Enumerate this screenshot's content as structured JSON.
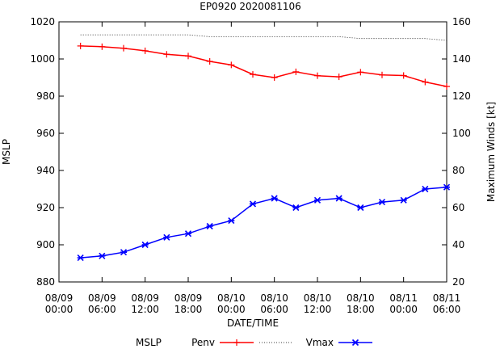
{
  "chart_data": {
    "type": "line",
    "title": "EP0920 2020081106",
    "xlabel": "DATE/TIME",
    "ylabel": "MSLP",
    "y2label": "Maximum Winds [kt]",
    "xlim": [
      0,
      54
    ],
    "ylim": [
      880,
      1020
    ],
    "y2lim": [
      20,
      160
    ],
    "x_ticks": [
      {
        "value": 0,
        "label": [
          "08/09",
          "00:00"
        ]
      },
      {
        "value": 6,
        "label": [
          "08/09",
          "06:00"
        ]
      },
      {
        "value": 12,
        "label": [
          "08/09",
          "12:00"
        ]
      },
      {
        "value": 18,
        "label": [
          "08/09",
          "18:00"
        ]
      },
      {
        "value": 24,
        "label": [
          "08/10",
          "00:00"
        ]
      },
      {
        "value": 30,
        "label": [
          "08/10",
          "06:00"
        ]
      },
      {
        "value": 36,
        "label": [
          "08/10",
          "12:00"
        ]
      },
      {
        "value": 42,
        "label": [
          "08/10",
          "18:00"
        ]
      },
      {
        "value": 48,
        "label": [
          "08/11",
          "00:00"
        ]
      },
      {
        "value": 54,
        "label": [
          "08/11",
          "06:00"
        ]
      }
    ],
    "y_ticks": [
      880,
      900,
      920,
      940,
      960,
      980,
      1000,
      1020
    ],
    "y2_ticks": [
      20,
      40,
      60,
      80,
      100,
      120,
      140,
      160
    ],
    "grid": false,
    "legend_position": "bottom",
    "legend_title": "MSLP",
    "series": [
      {
        "name": "Penv",
        "axis": "left",
        "color": "#ff0000",
        "marker": "plus",
        "style": "solid",
        "x": [
          3,
          6,
          9,
          12,
          15,
          18,
          21,
          24,
          27,
          30,
          33,
          36,
          39,
          42,
          45,
          48,
          51,
          54
        ],
        "values": [
          1007,
          1006.6,
          1005.8,
          1004.4,
          1002.5,
          1001.6,
          998.7,
          996.8,
          991.7,
          990,
          993.1,
          991,
          990.4,
          992.9,
          991.4,
          991.1,
          987.6,
          985.2
        ]
      },
      {
        "name": "",
        "axis": "right",
        "color": "#000000",
        "marker": "none",
        "style": "dotted",
        "x": [
          3,
          6,
          9,
          12,
          15,
          18,
          21,
          24,
          27,
          30,
          33,
          36,
          39,
          42,
          45,
          48,
          51,
          54
        ],
        "values": [
          153,
          153,
          153,
          153,
          153,
          153,
          152,
          152,
          152,
          152,
          152,
          152,
          152,
          151,
          151,
          151,
          151,
          150
        ]
      },
      {
        "name": "Vmax",
        "axis": "right",
        "color": "#0000ff",
        "marker": "star",
        "style": "solid",
        "x": [
          3,
          6,
          9,
          12,
          15,
          18,
          21,
          24,
          27,
          30,
          33,
          36,
          39,
          42,
          45,
          48,
          51,
          54
        ],
        "values": [
          33,
          34,
          36,
          40,
          44,
          46,
          50,
          53,
          62,
          65,
          60,
          64,
          65,
          60,
          63,
          64,
          70,
          71
        ]
      }
    ]
  }
}
